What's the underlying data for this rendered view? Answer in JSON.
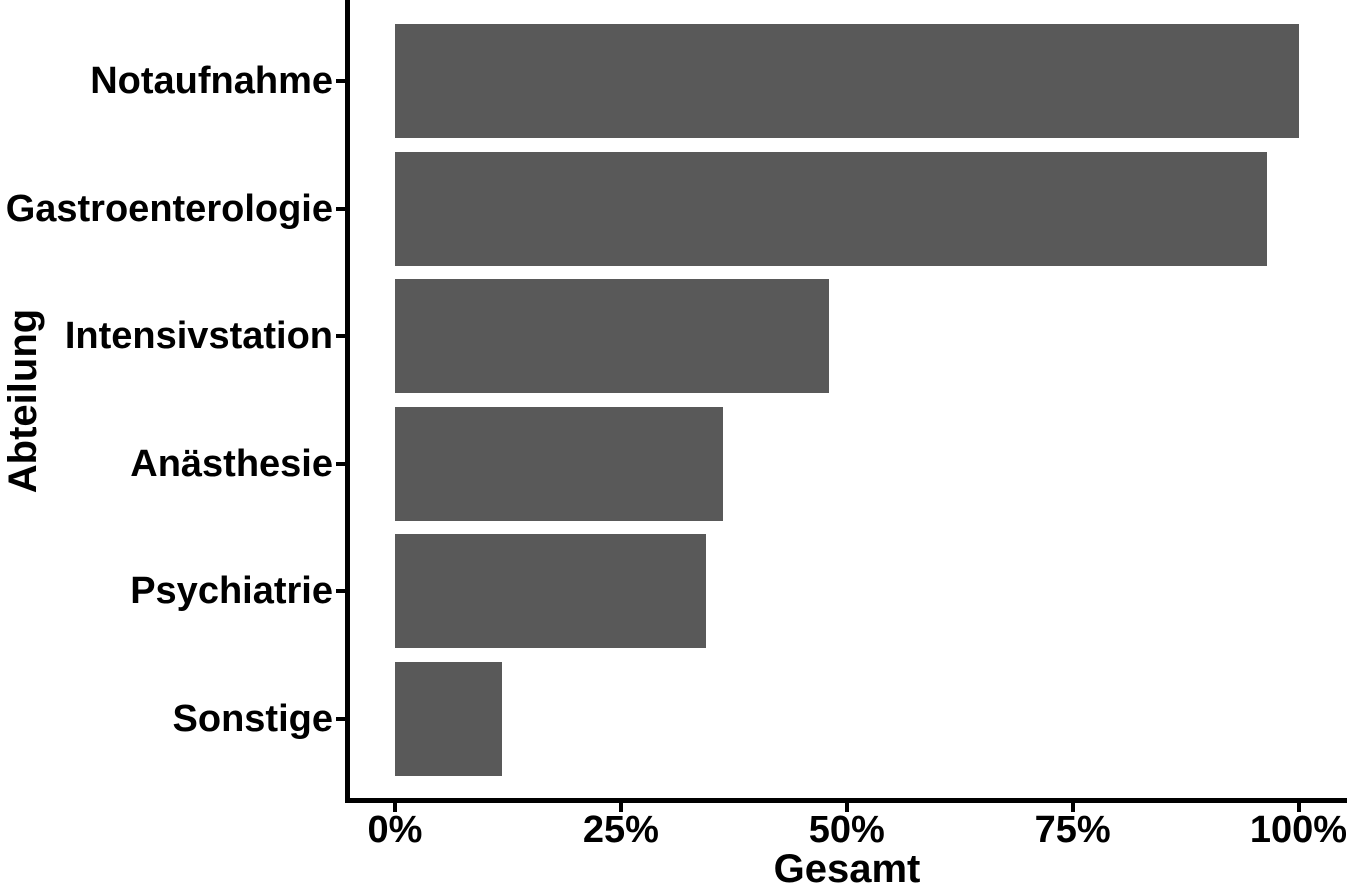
{
  "chart_data": {
    "type": "bar",
    "orientation": "horizontal",
    "title": "",
    "categories": [
      "Notaufnahme",
      "Gastroenterologie",
      "Intensivstation",
      "Anästhesie",
      "Psychiatrie",
      "Sonstige"
    ],
    "values": [
      100,
      96.5,
      48,
      36.3,
      34.4,
      11.8
    ],
    "value_unit": "%",
    "xlabel": "Gesamt",
    "ylabel": "Abteilung",
    "xtick_labels": [
      "0%",
      "25%",
      "50%",
      "75%",
      "100%"
    ],
    "xtick_values": [
      0,
      25,
      50,
      75,
      100
    ],
    "xlim": [
      0,
      100
    ],
    "grid": false,
    "legend": null,
    "bar_color": "#595959",
    "axis_color": "#000000",
    "background_color": "#ffffff"
  }
}
